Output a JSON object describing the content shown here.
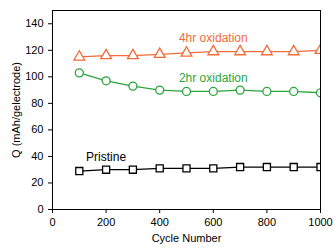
{
  "chart_data": {
    "type": "line",
    "x_label": "Cycle Number",
    "y_label": "Q (mAh/gelectrode)",
    "x": [
      100,
      200,
      300,
      400,
      500,
      600,
      700,
      800,
      900,
      1000
    ],
    "series": [
      {
        "name": "4hr oxidation",
        "color": "#f26b3a",
        "marker": "triangle",
        "values": [
          115,
          116,
          116,
          117,
          118,
          119,
          119,
          119,
          119,
          120
        ]
      },
      {
        "name": "2hr oxidation",
        "color": "#2aa63c",
        "marker": "circle",
        "values": [
          103,
          97,
          93,
          90,
          89,
          89,
          90,
          89,
          89,
          88
        ]
      },
      {
        "name": "Pristine",
        "color": "#000000",
        "marker": "square",
        "values": [
          29,
          30,
          30,
          31,
          31,
          31,
          32,
          32,
          32,
          32
        ]
      }
    ],
    "xlim": [
      0,
      1000
    ],
    "xticks": [
      0,
      200,
      400,
      600,
      800,
      1000
    ],
    "ylim": [
      0,
      150
    ],
    "yticks": [
      0,
      20,
      40,
      60,
      80,
      100,
      120,
      140
    ],
    "grid": false
  }
}
